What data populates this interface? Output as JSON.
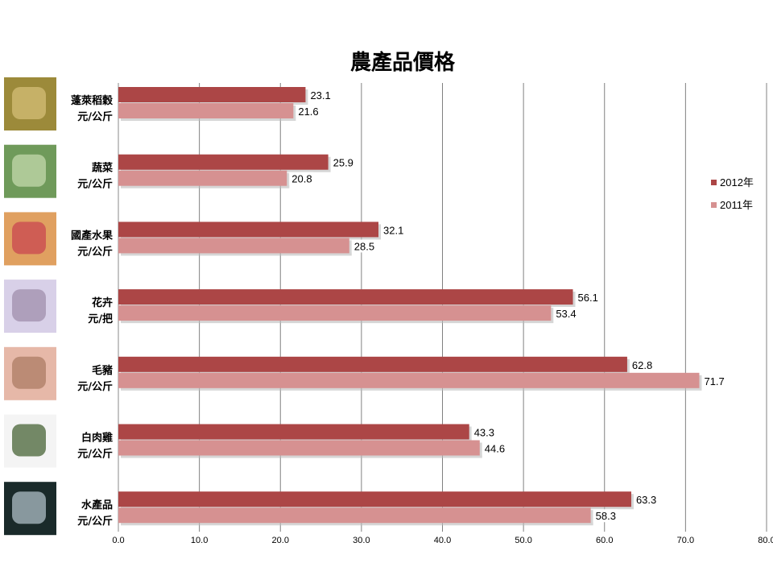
{
  "chart_data": {
    "type": "bar",
    "orientation": "horizontal",
    "title": "農產品價格",
    "categories": [
      {
        "name": "蓬萊稻穀",
        "unit": "元/公斤",
        "image": "rice-photo"
      },
      {
        "name": "蔬菜",
        "unit": "元/公斤",
        "image": "cabbage-photo"
      },
      {
        "name": "國產水果",
        "unit": "元/公斤",
        "image": "fruit-photo"
      },
      {
        "name": "花卉",
        "unit": "元/把",
        "image": "orchid-photo"
      },
      {
        "name": "毛豬",
        "unit": "元/公斤",
        "image": "pig-photo"
      },
      {
        "name": "白肉雞",
        "unit": "元/公斤",
        "image": "chicken-photo"
      },
      {
        "name": "水產品",
        "unit": "元/公斤",
        "image": "fish-photo"
      }
    ],
    "series": [
      {
        "name": "2012年",
        "color": "#ac4646",
        "values": [
          23.1,
          25.9,
          32.1,
          56.1,
          62.8,
          43.3,
          63.3
        ]
      },
      {
        "name": "2011年",
        "color": "#d69191",
        "values": [
          21.6,
          20.8,
          28.5,
          53.4,
          71.7,
          44.6,
          58.3
        ]
      }
    ],
    "xlim": [
      0,
      80
    ],
    "xticks": [
      "0.0",
      "10.0",
      "20.0",
      "30.0",
      "40.0",
      "50.0",
      "60.0",
      "70.0",
      "80.0"
    ],
    "grid": true,
    "legend_position": "right"
  }
}
